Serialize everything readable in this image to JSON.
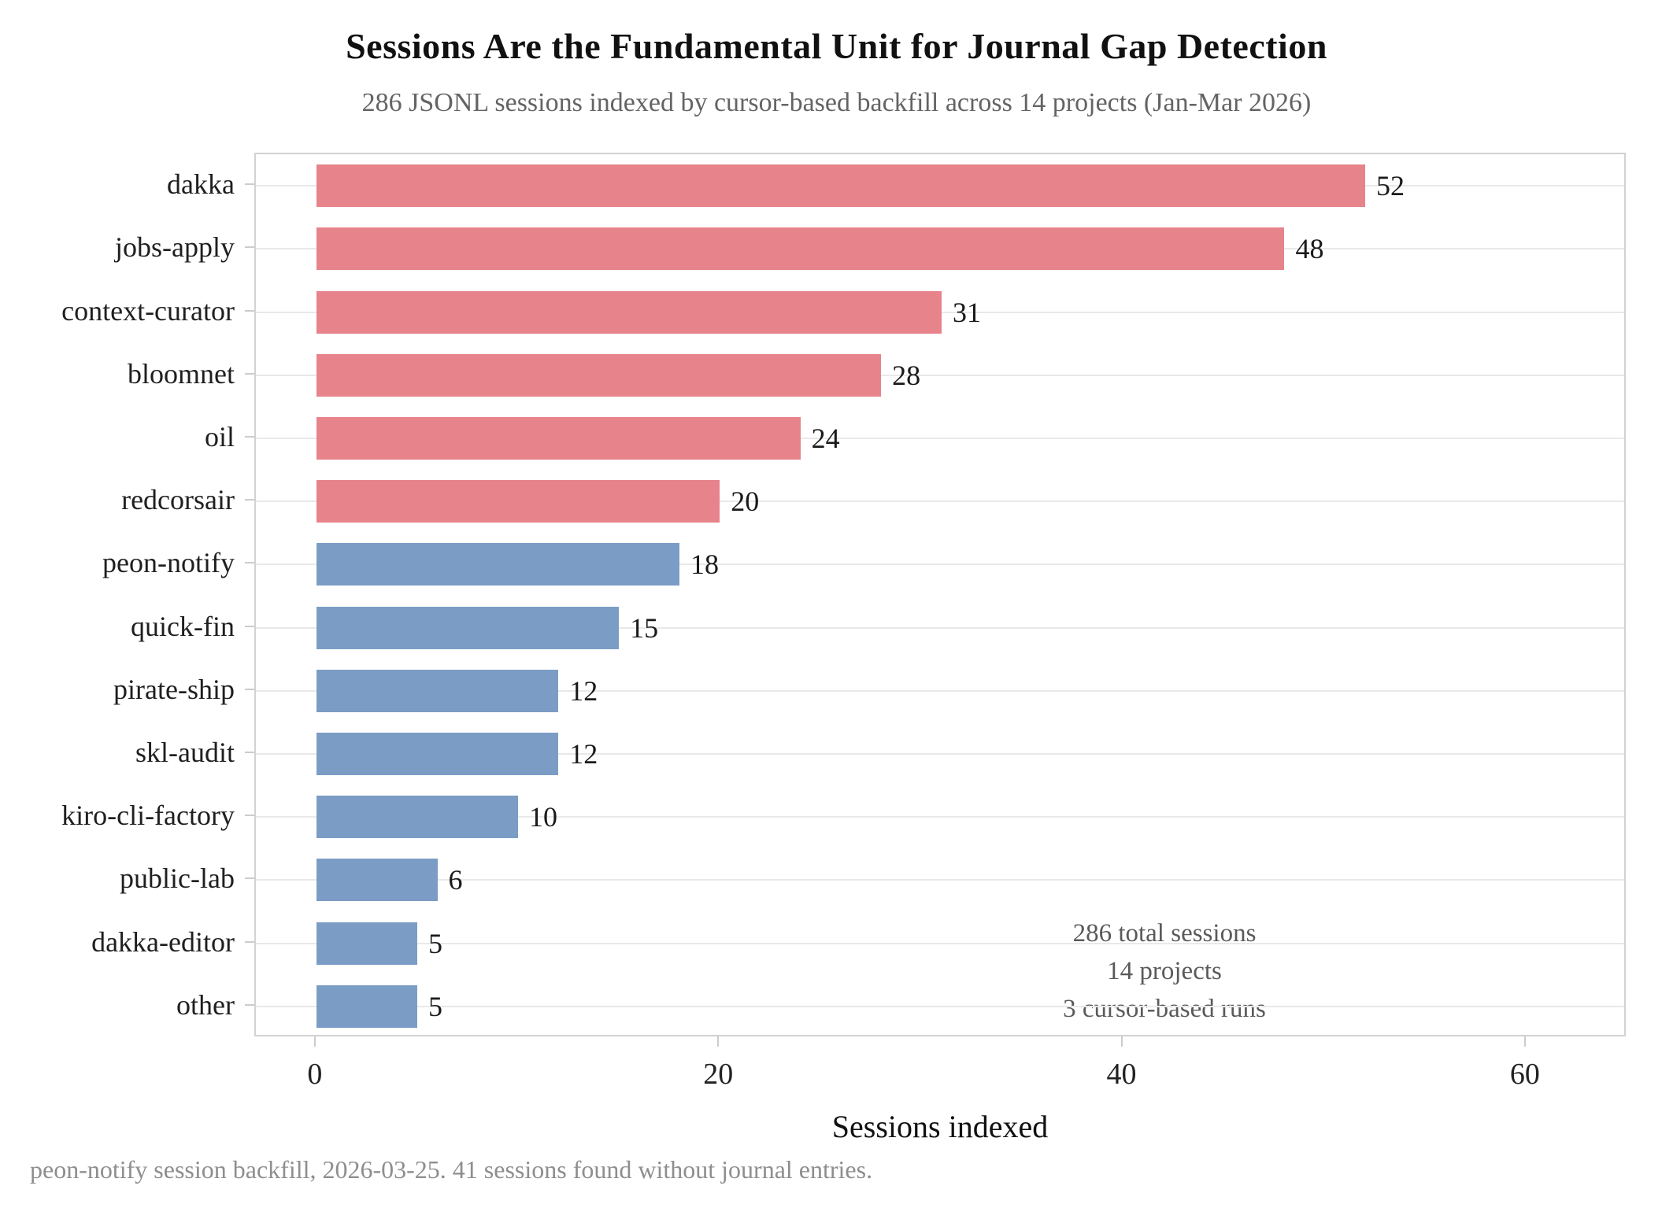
{
  "title": "Sessions Are the Fundamental Unit for Journal Gap Detection",
  "subtitle": "286 JSONL sessions indexed by cursor-based backfill across 14 projects (Jan-Mar 2026)",
  "footer": "peon-notify session backfill, 2026-03-25. 41 sessions found without journal entries.",
  "annotation": {
    "lines": [
      "286 total sessions",
      "14 projects",
      "3 cursor-based runs"
    ]
  },
  "chart_data": {
    "type": "bar",
    "orientation": "horizontal",
    "title": "Sessions Are the Fundamental Unit for Journal Gap Detection",
    "subtitle": "286 JSONL sessions indexed by cursor-based backfill across 14 projects (Jan-Mar 2026)",
    "xlabel": "Sessions indexed",
    "ylabel": "",
    "categories": [
      "dakka",
      "jobs-apply",
      "context-curator",
      "bloomnet",
      "oil",
      "redcorsair",
      "peon-notify",
      "quick-fin",
      "pirate-ship",
      "skl-audit",
      "kiro-cli-factory",
      "public-lab",
      "dakka-editor",
      "other"
    ],
    "values": [
      52,
      48,
      31,
      28,
      24,
      20,
      18,
      15,
      12,
      12,
      10,
      6,
      5,
      5
    ],
    "bar_color_groups": [
      "red",
      "red",
      "red",
      "red",
      "red",
      "red",
      "blue",
      "blue",
      "blue",
      "blue",
      "blue",
      "blue",
      "blue",
      "blue"
    ],
    "palette": {
      "red": "#e7838b",
      "blue": "#7b9dc5"
    },
    "value_labels_shown": true,
    "xticks": [
      0,
      20,
      40,
      60
    ],
    "xlim": [
      -3,
      65
    ],
    "grid": "horizontal gridlines at each category row",
    "legend": "none"
  }
}
